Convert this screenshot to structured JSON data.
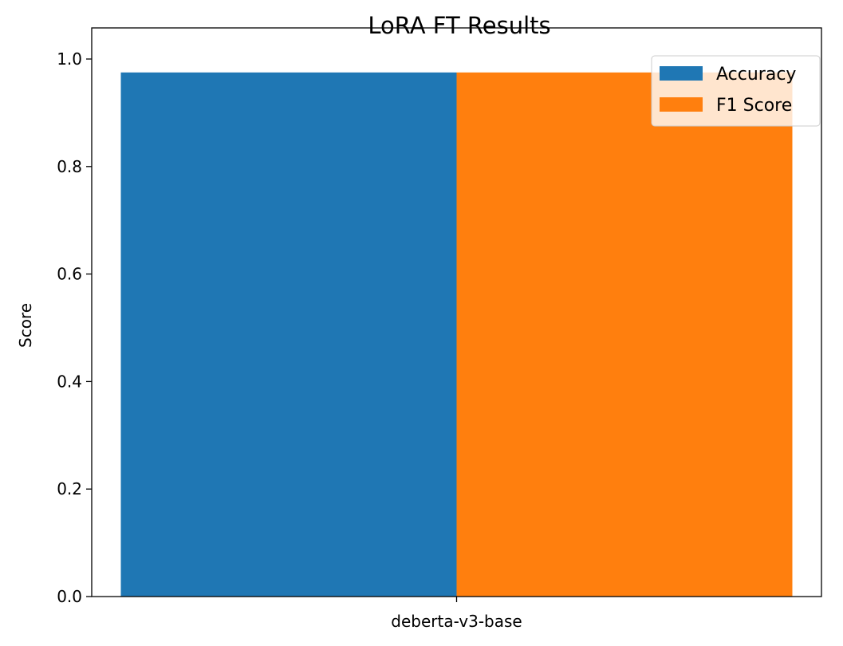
{
  "chart_data": {
    "type": "bar",
    "title": "LoRA FT Results",
    "xlabel": "",
    "ylabel": "Score",
    "categories": [
      "deberta-v3-base"
    ],
    "series": [
      {
        "name": "Accuracy",
        "values": [
          0.975
        ],
        "color": "#1f77b4"
      },
      {
        "name": "F1 Score",
        "values": [
          0.975
        ],
        "color": "#ff7f0e"
      }
    ],
    "ylim": [
      0,
      1.0
    ],
    "yticks": [
      "0.0",
      "0.2",
      "0.4",
      "0.6",
      "0.8",
      "1.0"
    ],
    "grid": false,
    "legend_position": "top-right"
  }
}
